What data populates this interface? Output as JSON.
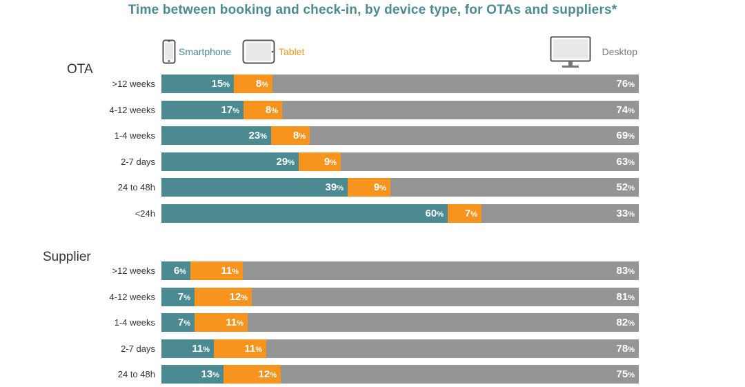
{
  "chart_data": {
    "type": "bar",
    "orientation": "horizontal",
    "stacked": true,
    "title": "Time between booking and check-in, by device type, for OTAs and suppliers*",
    "legend_position": "top",
    "colors": {
      "Smartphone": "#4b8a90",
      "Tablet": "#f7941d",
      "Desktop": "#959595"
    },
    "legend": [
      {
        "name": "Smartphone",
        "icon": "smartphone-icon",
        "color": "#4b8a90"
      },
      {
        "name": "Tablet",
        "icon": "tablet-icon",
        "color": "#f7941d"
      },
      {
        "name": "Desktop",
        "icon": "desktop-icon",
        "color": "#7a7a7a"
      }
    ],
    "unit_symbol": "%",
    "groups": [
      {
        "name": "OTA",
        "categories": [
          ">12 weeks",
          "4-12 weeks",
          "1-4 weeks",
          "2-7 days",
          "24 to 48h",
          "<24h"
        ],
        "series": [
          {
            "name": "Smartphone",
            "values": [
              15,
              17,
              23,
              29,
              39,
              60
            ]
          },
          {
            "name": "Tablet",
            "values": [
              8,
              8,
              8,
              9,
              9,
              7
            ]
          },
          {
            "name": "Desktop",
            "values": [
              76,
              74,
              69,
              63,
              52,
              33
            ]
          }
        ]
      },
      {
        "name": "Supplier",
        "categories": [
          ">12 weeks",
          "4-12 weeks",
          "1-4 weeks",
          "2-7 days",
          "24 to 48h"
        ],
        "series": [
          {
            "name": "Smartphone",
            "values": [
              6,
              7,
              7,
              11,
              13
            ]
          },
          {
            "name": "Tablet",
            "values": [
              11,
              12,
              11,
              11,
              12
            ]
          },
          {
            "name": "Desktop",
            "values": [
              83,
              81,
              82,
              78,
              75
            ]
          }
        ]
      }
    ]
  }
}
